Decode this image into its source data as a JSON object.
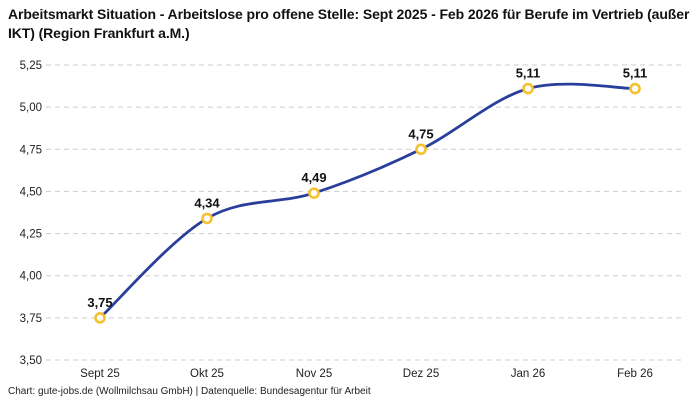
{
  "title": "Arbeitsmarkt Situation - Arbeitslose pro offene Stelle: Sept 2025 - Feb 2026 für Berufe im Vertrieb (außer IKT) (Region Frankfurt a.M.)",
  "footer": "Chart: gute-jobs.de (Wollmilchsau GmbH) | Datenquelle: Bundesagentur für Arbeit",
  "chart_data": {
    "type": "line",
    "title": "Arbeitsmarkt Situation - Arbeitslose pro offene Stelle: Sept 2025 - Feb 2026 für Berufe im Vertrieb (außer IKT) (Region Frankfurt a.M.)",
    "categories": [
      "Sept 25",
      "Okt 25",
      "Nov 25",
      "Dez 25",
      "Jan 26",
      "Feb 26"
    ],
    "values": [
      3.75,
      4.34,
      4.49,
      4.75,
      5.11,
      5.11
    ],
    "value_labels": [
      "3,75",
      "4,34",
      "4,49",
      "4,75",
      "5,11",
      "5,11"
    ],
    "y_ticks": [
      3.5,
      3.75,
      4.0,
      4.25,
      4.5,
      4.75,
      5.0,
      5.25
    ],
    "y_tick_labels": [
      "3,50",
      "3,75",
      "4,00",
      "4,25",
      "4,50",
      "4,75",
      "5,00",
      "5,25"
    ],
    "ylim": [
      3.5,
      5.25
    ],
    "xlabel": "",
    "ylabel": "",
    "grid": "horizontal-dashed",
    "legend": "none",
    "smooth": true,
    "colors": {
      "line": "#2a3f9c",
      "marker_ring": "#f6c12f",
      "marker_fill": "#ffffff",
      "gridline": "#cdcdcd",
      "tick_text": "#222222",
      "data_label_text": "#111111",
      "title_text": "#111111"
    }
  }
}
